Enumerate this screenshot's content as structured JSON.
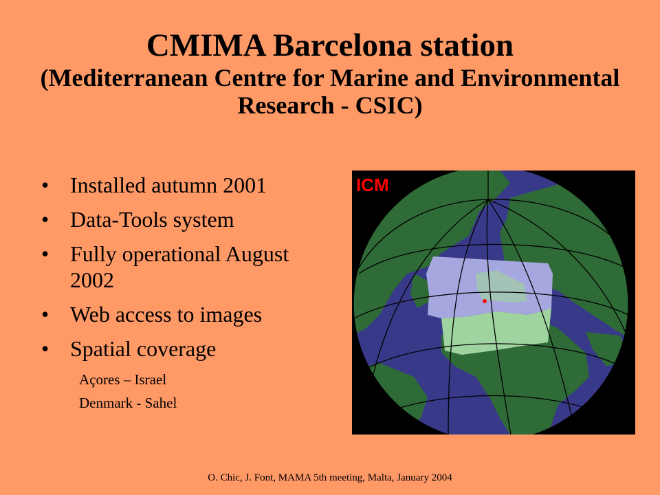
{
  "title": {
    "main": "CMIMA Barcelona station",
    "sub": "(Mediterranean Centre for Marine and Environmental Research - CSIC)"
  },
  "bullets": [
    "Installed autumn 2001",
    "Data-Tools system",
    "Fully operational August 2002",
    "Web access to images",
    "Spatial coverage"
  ],
  "sub_bullets": [
    "Açores – Israel",
    "Denmark - Sahel"
  ],
  "figure": {
    "logo_text": "ICM",
    "colors": {
      "ocean": "#39398A",
      "land": "#2F6B37",
      "coverage_sea": "#A7A7E0",
      "coverage_land": "#9FD39F",
      "marker": "#FF0000",
      "logo": "#FF0000"
    }
  },
  "footer": "O. Chic, J. Font,  MAMA 5th meeting, Malta, January 2004"
}
